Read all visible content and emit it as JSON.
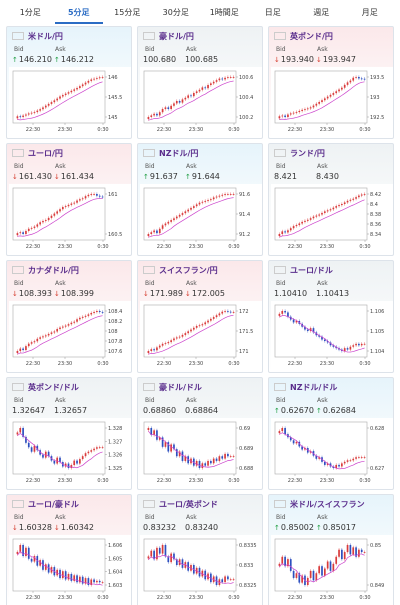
{
  "tabs": [
    "1分足",
    "5分足",
    "15分足",
    "30分足",
    "1時間足",
    "日足",
    "週足",
    "月足"
  ],
  "active_tab": 1,
  "labels": {
    "bid": "Bid",
    "ask": "Ask"
  },
  "colors": {
    "accent": "#2b6cc4",
    "pair_text": "#5a2d8c",
    "up": "#1f9e43",
    "down": "#d43a2c",
    "candle_up": "#d93b3b",
    "candle_down": "#2d4fbf",
    "ma": "#cc44cc"
  },
  "cards": [
    {
      "pair": "米ドル/円",
      "flag": "us-flag-icon",
      "tone": "up",
      "bid": "146.210",
      "ask": "146.212",
      "bid_dir": "up",
      "ask_dir": "up"
    },
    {
      "pair": "豪ドル/円",
      "flag": "au-flag-icon",
      "tone": "flat",
      "bid": "100.680",
      "ask": "100.685",
      "bid_dir": "",
      "ask_dir": ""
    },
    {
      "pair": "英ポンド/円",
      "flag": "gb-flag-icon",
      "tone": "down",
      "bid": "193.940",
      "ask": "193.947",
      "bid_dir": "down",
      "ask_dir": "down"
    },
    {
      "pair": "ユーロ/円",
      "flag": "eu-flag-icon",
      "tone": "down",
      "bid": "161.430",
      "ask": "161.434",
      "bid_dir": "down",
      "ask_dir": "down"
    },
    {
      "pair": "NZドル/円",
      "flag": "nz-flag-icon",
      "tone": "up",
      "bid": "91.637",
      "ask": "91.644",
      "bid_dir": "up",
      "ask_dir": "up"
    },
    {
      "pair": "ランド/円",
      "flag": "za-flag-icon",
      "tone": "flat",
      "bid": "8.421",
      "ask": "8.430",
      "bid_dir": "",
      "ask_dir": ""
    },
    {
      "pair": "カナダドル/円",
      "flag": "ca-flag-icon",
      "tone": "down",
      "bid": "108.393",
      "ask": "108.399",
      "bid_dir": "down",
      "ask_dir": "down"
    },
    {
      "pair": "スイスフラン/円",
      "flag": "ch-flag-icon",
      "tone": "down",
      "bid": "171.989",
      "ask": "172.005",
      "bid_dir": "down",
      "ask_dir": "down"
    },
    {
      "pair": "ユーロ/ドル",
      "flag": "eu-flag-icon",
      "tone": "flat",
      "bid": "1.10410",
      "ask": "1.10413",
      "bid_dir": "",
      "ask_dir": ""
    },
    {
      "pair": "英ポンド/ドル",
      "flag": "gb-flag-icon",
      "tone": "flat",
      "bid": "1.32647",
      "ask": "1.32657",
      "bid_dir": "",
      "ask_dir": ""
    },
    {
      "pair": "豪ドル/ドル",
      "flag": "au-flag-icon",
      "tone": "flat",
      "bid": "0.68860",
      "ask": "0.68864",
      "bid_dir": "",
      "ask_dir": ""
    },
    {
      "pair": "NZドル/ドル",
      "flag": "nz-flag-icon",
      "tone": "up",
      "bid": "0.62670",
      "ask": "0.62684",
      "bid_dir": "up",
      "ask_dir": "up"
    },
    {
      "pair": "ユーロ/豪ドル",
      "flag": "eu-flag-icon",
      "tone": "down",
      "bid": "1.60328",
      "ask": "1.60342",
      "bid_dir": "down",
      "ask_dir": "down"
    },
    {
      "pair": "ユーロ/英ポンド",
      "flag": "eu-flag-icon",
      "tone": "flat",
      "bid": "0.83232",
      "ask": "0.83240",
      "bid_dir": "",
      "ask_dir": ""
    },
    {
      "pair": "米ドル/スイスフラン",
      "flag": "us-flag-icon",
      "tone": "up",
      "bid": "0.85002",
      "ask": "0.85017",
      "bid_dir": "up",
      "ask_dir": "up"
    }
  ],
  "chart_data": [
    {
      "type": "candlestick",
      "x_ticks": [
        "22:30",
        "23:30",
        "0:30"
      ],
      "y_ticks": [
        "146",
        "145.5",
        "145"
      ],
      "closes": [
        145.1,
        145.08,
        145.12,
        145.15,
        145.18,
        145.2,
        145.22,
        145.26,
        145.3,
        145.35,
        145.4,
        145.45,
        145.5,
        145.55,
        145.6,
        145.66,
        145.7,
        145.74,
        145.78,
        145.82,
        145.86,
        145.9,
        145.95,
        146.0,
        146.05,
        146.1,
        146.14,
        146.16,
        146.18,
        146.2,
        146.21
      ]
    },
    {
      "type": "candlestick",
      "x_ticks": [
        "22:30",
        "23:30",
        "0:30"
      ],
      "y_ticks": [
        "100.6",
        "100.4",
        "100.2"
      ],
      "closes": [
        100.18,
        100.2,
        100.22,
        100.2,
        100.24,
        100.28,
        100.3,
        100.28,
        100.32,
        100.35,
        100.38,
        100.36,
        100.4,
        100.42,
        100.45,
        100.44,
        100.48,
        100.5,
        100.52,
        100.55,
        100.54,
        100.58,
        100.6,
        100.62,
        100.64,
        100.66,
        100.65,
        100.67,
        100.68,
        100.68,
        100.68
      ]
    },
    {
      "type": "candlestick",
      "x_ticks": [
        "22:30",
        "23:30",
        "0:30"
      ],
      "y_ticks": [
        "193.5",
        "193",
        "192.5"
      ],
      "closes": [
        192.9,
        192.92,
        192.88,
        192.95,
        192.98,
        193.0,
        193.02,
        193.05,
        193.08,
        193.1,
        193.12,
        193.15,
        193.2,
        193.25,
        193.3,
        193.35,
        193.4,
        193.45,
        193.5,
        193.55,
        193.6,
        193.65,
        193.7,
        193.78,
        193.85,
        193.9,
        193.98,
        194.0,
        193.96,
        193.95,
        193.94
      ]
    },
    {
      "type": "candlestick",
      "x_ticks": [
        "22:30",
        "23:30",
        "0:30"
      ],
      "y_ticks": [
        "161",
        "160.5"
      ],
      "closes": [
        160.6,
        160.62,
        160.58,
        160.65,
        160.7,
        160.72,
        160.75,
        160.8,
        160.85,
        160.88,
        160.9,
        160.95,
        161.0,
        161.05,
        161.1,
        161.15,
        161.2,
        161.22,
        161.25,
        161.28,
        161.3,
        161.35,
        161.38,
        161.4,
        161.45,
        161.48,
        161.5,
        161.5,
        161.46,
        161.44,
        161.43
      ]
    },
    {
      "type": "candlestick",
      "x_ticks": [
        "22:30",
        "23:30",
        "0:30"
      ],
      "y_ticks": [
        "91.6",
        "91.4",
        "91.2"
      ],
      "closes": [
        91.18,
        91.2,
        91.22,
        91.19,
        91.24,
        91.28,
        91.3,
        91.32,
        91.34,
        91.36,
        91.38,
        91.4,
        91.42,
        91.44,
        91.46,
        91.48,
        91.5,
        91.52,
        91.54,
        91.55,
        91.56,
        91.57,
        91.58,
        91.6,
        91.61,
        91.62,
        91.63,
        91.64,
        91.64,
        91.64,
        91.64
      ]
    },
    {
      "type": "candlestick",
      "x_ticks": [
        "22:30",
        "23:30",
        "0:30"
      ],
      "y_ticks": [
        "8.42",
        "8.4",
        "8.38",
        "8.36",
        "8.34"
      ],
      "closes": [
        8.345,
        8.35,
        8.348,
        8.352,
        8.356,
        8.36,
        8.362,
        8.365,
        8.368,
        8.37,
        8.372,
        8.375,
        8.378,
        8.38,
        8.382,
        8.385,
        8.388,
        8.39,
        8.392,
        8.395,
        8.398,
        8.4,
        8.402,
        8.405,
        8.408,
        8.41,
        8.412,
        8.415,
        8.418,
        8.42,
        8.421
      ]
    },
    {
      "type": "candlestick",
      "x_ticks": [
        "22:30",
        "23:30",
        "0:30"
      ],
      "y_ticks": [
        "108.4",
        "108.2",
        "108",
        "107.8",
        "107.6"
      ],
      "closes": [
        107.6,
        107.65,
        107.62,
        107.7,
        107.75,
        107.78,
        107.8,
        107.85,
        107.88,
        107.9,
        107.92,
        107.95,
        107.98,
        108.0,
        108.05,
        108.08,
        108.1,
        108.12,
        108.15,
        108.18,
        108.2,
        108.25,
        108.28,
        108.3,
        108.32,
        108.35,
        108.38,
        108.4,
        108.42,
        108.4,
        108.39
      ]
    },
    {
      "type": "candlestick",
      "x_ticks": [
        "22:30",
        "23:30",
        "0:30"
      ],
      "y_ticks": [
        "172",
        "171.5",
        "171"
      ],
      "closes": [
        170.9,
        170.95,
        170.92,
        171.0,
        171.05,
        171.1,
        171.12,
        171.15,
        171.2,
        171.25,
        171.28,
        171.3,
        171.35,
        171.4,
        171.45,
        171.5,
        171.55,
        171.6,
        171.62,
        171.65,
        171.7,
        171.75,
        171.8,
        171.85,
        171.9,
        171.95,
        172.0,
        172.02,
        172.0,
        171.99,
        171.99
      ]
    },
    {
      "type": "candlestick",
      "x_ticks": [
        "22:30",
        "23:30",
        "0:30"
      ],
      "y_ticks": [
        "1.106",
        "1.105",
        "1.104"
      ],
      "closes": [
        1.1062,
        1.1064,
        1.1063,
        1.106,
        1.1058,
        1.1056,
        1.1057,
        1.1055,
        1.1053,
        1.1051,
        1.105,
        1.1052,
        1.1049,
        1.1047,
        1.1046,
        1.1044,
        1.1043,
        1.1042,
        1.104,
        1.1039,
        1.1038,
        1.1037,
        1.1036,
        1.1038,
        1.1037,
        1.1039,
        1.104,
        1.1041,
        1.104,
        1.1041,
        1.1041
      ]
    },
    {
      "type": "candlestick",
      "x_ticks": [
        "22:30",
        "23:30",
        "0:30"
      ],
      "y_ticks": [
        "1.328",
        "1.327",
        "1.326",
        "1.325"
      ],
      "closes": [
        1.3275,
        1.3278,
        1.3272,
        1.3268,
        1.3265,
        1.3262,
        1.3266,
        1.3263,
        1.326,
        1.3258,
        1.3262,
        1.3259,
        1.3256,
        1.3254,
        1.3258,
        1.3255,
        1.3252,
        1.3254,
        1.3251,
        1.3253,
        1.3256,
        1.3254,
        1.3257,
        1.3259,
        1.3261,
        1.3262,
        1.3263,
        1.3264,
        1.3265,
        1.3265,
        1.3265
      ]
    },
    {
      "type": "candlestick",
      "x_ticks": [
        "22:30",
        "23:30",
        "0:30"
      ],
      "y_ticks": [
        "0.69",
        "0.689",
        "0.688"
      ],
      "closes": [
        0.6898,
        0.6895,
        0.6897,
        0.6893,
        0.6894,
        0.689,
        0.6892,
        0.6888,
        0.6891,
        0.6889,
        0.6886,
        0.6888,
        0.6884,
        0.6886,
        0.6883,
        0.6885,
        0.6882,
        0.6884,
        0.6881,
        0.6883,
        0.6882,
        0.6884,
        0.6883,
        0.6885,
        0.6884,
        0.6886,
        0.6885,
        0.6887,
        0.6886,
        0.6886,
        0.6886
      ]
    },
    {
      "type": "candlestick",
      "x_ticks": [
        "22:30",
        "23:30",
        "0:30"
      ],
      "y_ticks": [
        "0.628",
        "0.627"
      ],
      "closes": [
        0.6284,
        0.6286,
        0.6282,
        0.628,
        0.6278,
        0.6276,
        0.6277,
        0.6274,
        0.6272,
        0.6273,
        0.627,
        0.6271,
        0.6268,
        0.6266,
        0.6267,
        0.6264,
        0.6262,
        0.6263,
        0.6261,
        0.626,
        0.6262,
        0.6261,
        0.6263,
        0.6264,
        0.6265,
        0.6265,
        0.6266,
        0.6267,
        0.6267,
        0.6267,
        0.6267
      ]
    },
    {
      "type": "candlestick",
      "x_ticks": [
        "22:30",
        "23:30",
        "0:30"
      ],
      "y_ticks": [
        "1.606",
        "1.605",
        "1.604",
        "1.603"
      ],
      "closes": [
        1.6055,
        1.606,
        1.6052,
        1.6058,
        1.605,
        1.6048,
        1.6052,
        1.6045,
        1.6049,
        1.6042,
        1.6046,
        1.604,
        1.6044,
        1.6038,
        1.6042,
        1.6036,
        1.6041,
        1.6035,
        1.6039,
        1.6034,
        1.6038,
        1.6033,
        1.6037,
        1.6032,
        1.6036,
        1.6031,
        1.6035,
        1.6033,
        1.6034,
        1.6033,
        1.6033
      ]
    },
    {
      "type": "candlestick",
      "x_ticks": [
        "22:30",
        "23:30",
        "0:30"
      ],
      "y_ticks": [
        "0.8335",
        "0.833",
        "0.8325"
      ],
      "closes": [
        0.8331,
        0.8333,
        0.833,
        0.8334,
        0.8332,
        0.8335,
        0.8331,
        0.8329,
        0.8332,
        0.833,
        0.8328,
        0.833,
        0.8327,
        0.8329,
        0.8326,
        0.8328,
        0.8325,
        0.8327,
        0.8324,
        0.8326,
        0.8323,
        0.8325,
        0.8322,
        0.8324,
        0.8321,
        0.8323,
        0.8322,
        0.8324,
        0.8323,
        0.8323,
        0.8323
      ]
    },
    {
      "type": "candlestick",
      "x_ticks": [
        "22:30",
        "23:30",
        "0:30"
      ],
      "y_ticks": [
        "0.85",
        "0.849"
      ],
      "closes": [
        0.8495,
        0.8498,
        0.8494,
        0.8497,
        0.8492,
        0.8489,
        0.8491,
        0.8487,
        0.849,
        0.8486,
        0.8489,
        0.8492,
        0.8488,
        0.8491,
        0.8494,
        0.849,
        0.8493,
        0.8496,
        0.8492,
        0.8495,
        0.8498,
        0.8501,
        0.8497,
        0.85,
        0.8503,
        0.8499,
        0.8502,
        0.8498,
        0.8501,
        0.85,
        0.85
      ]
    }
  ]
}
